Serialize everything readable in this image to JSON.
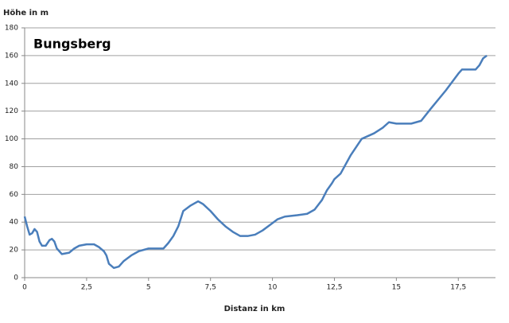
{
  "chart_data": {
    "type": "line",
    "title": "Bungsberg",
    "y_label": "Höhe in m",
    "x_label": "Distanz in km",
    "x": [
      0,
      0.1,
      0.2,
      0.3,
      0.4,
      0.5,
      0.6,
      0.7,
      0.85,
      1.0,
      1.1,
      1.2,
      1.3,
      1.5,
      1.8,
      2.0,
      2.2,
      2.5,
      2.8,
      3.0,
      3.2,
      3.3,
      3.4,
      3.6,
      3.8,
      4.0,
      4.3,
      4.6,
      5.0,
      5.3,
      5.6,
      5.8,
      6.0,
      6.2,
      6.4,
      6.7,
      7.0,
      7.2,
      7.5,
      7.8,
      8.1,
      8.4,
      8.7,
      9.0,
      9.3,
      9.6,
      9.9,
      10.2,
      10.5,
      11.0,
      11.4,
      11.7,
      12.0,
      12.2,
      12.4,
      12.5,
      12.75,
      13.15,
      13.6,
      14.1,
      14.45,
      14.7,
      15.0,
      15.6,
      16.0,
      16.4,
      17.0,
      17.5,
      17.65,
      18.2,
      18.35,
      18.5,
      18.65
    ],
    "series": [
      {
        "name": "Höhe",
        "color": "#4a7ebb",
        "values": [
          44,
          37,
          31,
          32,
          35,
          33,
          26,
          23,
          23,
          27,
          28,
          26,
          21,
          17,
          18,
          21,
          23,
          24,
          24,
          22,
          19,
          16,
          10,
          7,
          8,
          12,
          16,
          19,
          21,
          21,
          21,
          25,
          30,
          37,
          48,
          52,
          55,
          53,
          48,
          42,
          37,
          33,
          30,
          30,
          31,
          34,
          38,
          42,
          44,
          45,
          46,
          49,
          56,
          63,
          68,
          71,
          75,
          88,
          100,
          104,
          108,
          112,
          111,
          111,
          113,
          122,
          135,
          147,
          150,
          150,
          153,
          158,
          160
        ]
      }
    ],
    "xlim": [
      0,
      19
    ],
    "ylim": [
      0,
      180
    ],
    "xticks": [
      0,
      {
        "value": 2.5,
        "label": "2,5"
      },
      5,
      {
        "value": 7.5,
        "label": "7,5"
      },
      10,
      {
        "value": 12.5,
        "label": "12,5"
      },
      15,
      {
        "value": 17.5,
        "label": "17,5"
      }
    ],
    "yticks": [
      0,
      20,
      40,
      60,
      80,
      100,
      120,
      140,
      160,
      180
    ],
    "grid": true
  }
}
